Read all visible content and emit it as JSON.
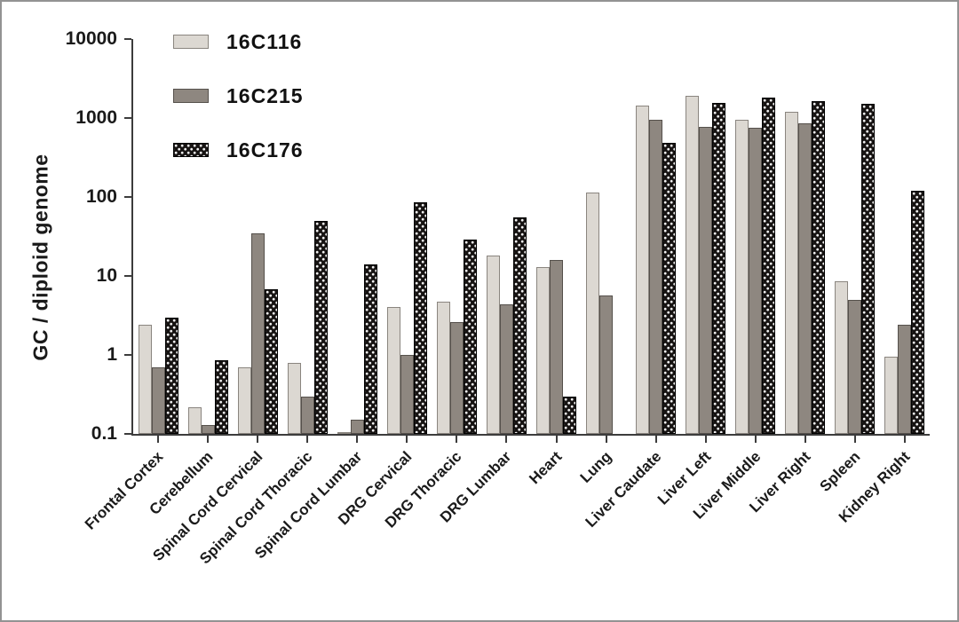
{
  "chart_data": {
    "type": "bar",
    "title": "",
    "xlabel": "",
    "ylabel": "GC / diploid genome",
    "yscale": "log",
    "ylim": [
      0.1,
      10000
    ],
    "ytick_labels": [
      "10000",
      "1000",
      "100",
      "10",
      "1",
      "0.1"
    ],
    "ytick_values": [
      10000,
      1000,
      100,
      10,
      1,
      0.1
    ],
    "grid": false,
    "legend_position": "top-left-inside",
    "categories": [
      "Frontal Cortex",
      "Cerebellum",
      "Spinal Cord Cervical",
      "Spinal Cord Thoracic",
      "Spinal Cord Lumbar",
      "DRG Cervical",
      "DRG Thoracic",
      "DRG Lumbar",
      "Heart",
      "Lung",
      "Liver Caudate",
      "Liver Left",
      "Liver Middle",
      "Liver Right",
      "Spleen",
      "Kidney Right"
    ],
    "series": [
      {
        "name": "16C116",
        "fill_color": "#dcd8d2",
        "border_color": "#8a857f",
        "pattern": "solid",
        "values": [
          2.4,
          0.22,
          0.7,
          0.8,
          0.105,
          4.0,
          4.7,
          18,
          13,
          115,
          1450,
          1900,
          950,
          1200,
          8.5,
          0.95
        ]
      },
      {
        "name": "16C215",
        "fill_color": "#8e8780",
        "border_color": "#55504b",
        "pattern": "solid",
        "values": [
          0.7,
          0.13,
          35,
          0.3,
          0.15,
          1.0,
          2.6,
          4.4,
          16,
          5.7,
          950,
          780,
          760,
          850,
          5.0,
          2.4
        ]
      },
      {
        "name": "16C176",
        "fill_color": "#161312",
        "border_color": "#000000",
        "pattern": "white-dots",
        "values": [
          3.0,
          0.85,
          6.8,
          50,
          14,
          85,
          29,
          55,
          0.3,
          null,
          480,
          1550,
          1800,
          1650,
          1500,
          120
        ]
      }
    ]
  }
}
